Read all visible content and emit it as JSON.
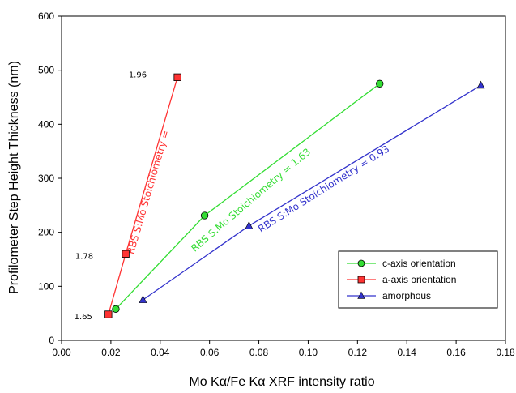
{
  "chart_data": {
    "type": "line",
    "xlabel": "Mo Kα/Fe Kα XRF intensity ratio",
    "ylabel": "Profilometer Step Height Thickness (nm)",
    "xlim": [
      0,
      0.18
    ],
    "ylim": [
      0,
      600
    ],
    "xticks": [
      "0.00",
      "0.02",
      "0.04",
      "0.06",
      "0.08",
      "0.10",
      "0.12",
      "0.14",
      "0.16",
      "0.18"
    ],
    "yticks": [
      "0",
      "100",
      "200",
      "300",
      "400",
      "500",
      "600"
    ],
    "grid": false,
    "legend_position": "bottom-right",
    "series": [
      {
        "name": "c-axis orientation",
        "color": "#33dd33",
        "marker": "circle",
        "points": [
          [
            0.022,
            58
          ],
          [
            0.058,
            231
          ],
          [
            0.129,
            475
          ]
        ]
      },
      {
        "name": "a-axis orientation",
        "color": "#ff3333",
        "marker": "square",
        "points": [
          [
            0.019,
            48
          ],
          [
            0.026,
            160
          ],
          [
            0.047,
            487
          ]
        ]
      },
      {
        "name": "amorphous",
        "color": "#3333cc",
        "marker": "triangle",
        "points": [
          [
            0.033,
            75
          ],
          [
            0.076,
            212
          ],
          [
            0.17,
            472
          ]
        ]
      }
    ],
    "annotations": [
      {
        "text": "RBS S:Mo Stoichiometry =",
        "color": "#ff3333",
        "series": 1
      },
      {
        "text": "RBS S:Mo Stoichiometry = 1.63",
        "color": "#33dd33",
        "series": 0
      },
      {
        "text": "RBS S:Mo Stoichiometry = 0.93",
        "color": "#3333cc",
        "series": 2
      }
    ],
    "point_labels": [
      {
        "text": "1.96",
        "x": 0.047,
        "y": 487
      },
      {
        "text": "1.78",
        "x": 0.026,
        "y": 160
      },
      {
        "text": "1.65",
        "x": 0.019,
        "y": 48
      }
    ]
  }
}
